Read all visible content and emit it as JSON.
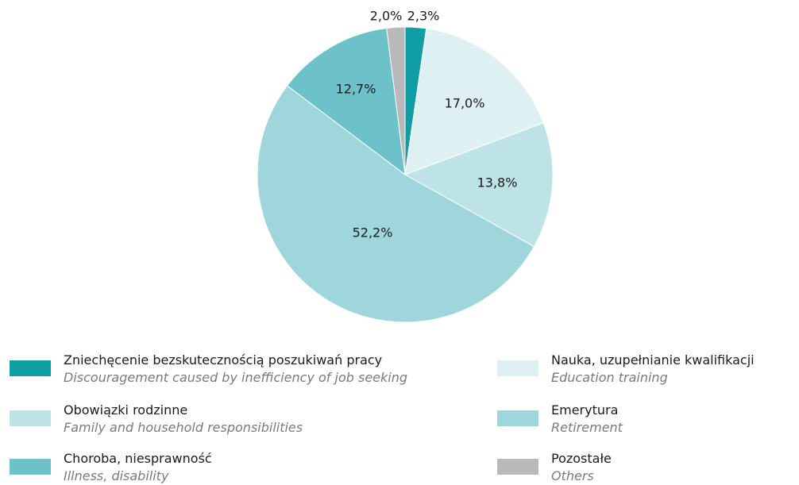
{
  "chart_data": {
    "type": "pie",
    "title": "",
    "slices": [
      {
        "pl": "Zniechęcenie bezskutecznością  poszukiwań pracy",
        "en": "Discouragement caused by inefficiency of job seeking",
        "value": 2.3,
        "label": "2,3%",
        "color": "#0f9ea3"
      },
      {
        "pl": "Nauka, uzupełnianie kwalifikacji",
        "en": "Education training",
        "value": 17.0,
        "label": "17,0%",
        "color": "#dff0f2"
      },
      {
        "pl": "Obowiązki rodzinne",
        "en": "Family and household responsibilities",
        "value": 13.8,
        "label": "13,8%",
        "color": "#bde3e6"
      },
      {
        "pl": "Emerytura",
        "en": "Retirement",
        "value": 52.2,
        "label": "52,2%",
        "color": "#9fd6db"
      },
      {
        "pl": "Choroba, niesprawność",
        "en": "Illness, disability",
        "value": 12.7,
        "label": "12,7%",
        "color": "#6cc2c8"
      },
      {
        "pl": "Pozostałe",
        "en": "Others",
        "value": 2.0,
        "label": "2,0%",
        "color": "#b9b9bc"
      }
    ]
  },
  "legend": [
    {
      "pl": "Zniechęcenie bezskutecznością  poszukiwań pracy",
      "en": "Discouragement caused by inefficiency of job seeking",
      "color": "#0f9ea3"
    },
    {
      "pl": "Nauka, uzupełnianie kwalifikacji",
      "en": "Education training",
      "color": "#dff0f2"
    },
    {
      "pl": "Obowiązki rodzinne",
      "en": "Family and household responsibilities",
      "color": "#bde3e6"
    },
    {
      "pl": "Emerytura",
      "en": "Retirement",
      "color": "#9fd6db"
    },
    {
      "pl": "Choroba, niesprawność",
      "en": "Illness, disability",
      "color": "#6cc2c8"
    },
    {
      "pl": "Pozostałe",
      "en": "Others",
      "color": "#b9b9bc"
    }
  ]
}
